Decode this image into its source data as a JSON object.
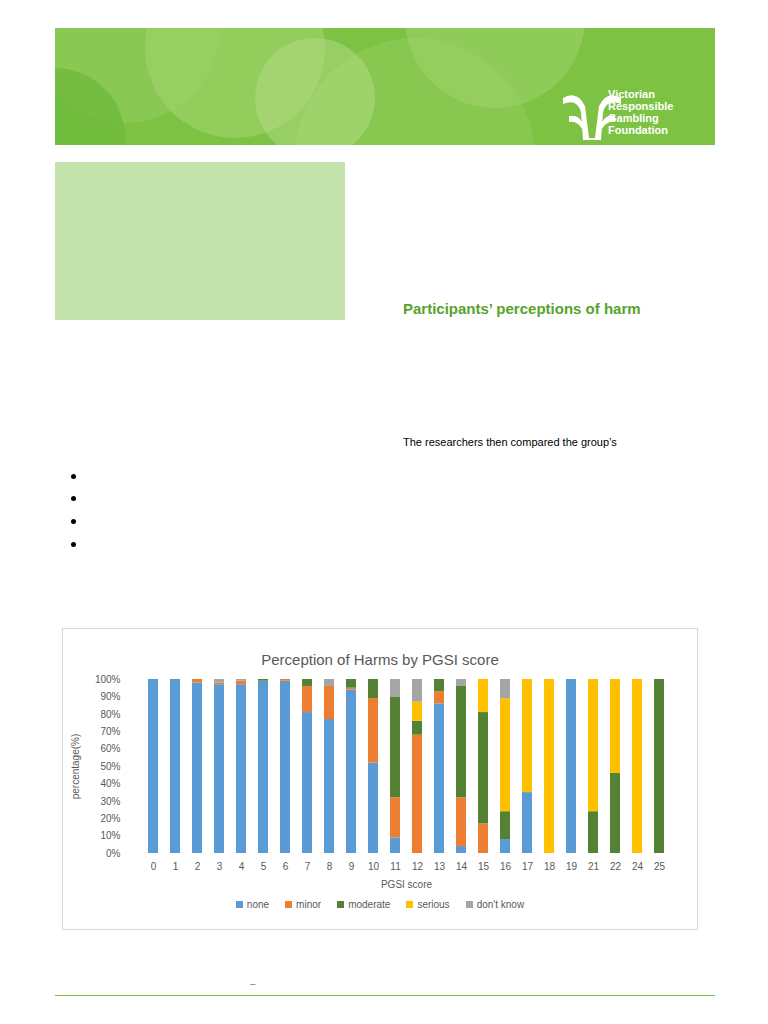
{
  "page": {
    "logo_lines": [
      "Victorian",
      "Responsible",
      "Gambling",
      "Foundation"
    ],
    "heading": "Participants’ perceptions of harm",
    "text": "The researchers then compared the group’s",
    "footer_text": "–"
  },
  "chart_data": {
    "type": "bar",
    "stacked": true,
    "title": "Perception of Harms by PGSI score",
    "x_label": "PGSI score",
    "y_label": "percentage(%)",
    "categories": [
      "0",
      "1",
      "2",
      "3",
      "4",
      "5",
      "6",
      "7",
      "8",
      "9",
      "10",
      "11",
      "12",
      "13",
      "14",
      "15",
      "16",
      "17",
      "18",
      "19",
      "21",
      "22",
      "24",
      "25"
    ],
    "series": [
      {
        "name": "none",
        "color": "#5b9bd5",
        "values": [
          100,
          100,
          98,
          97,
          97,
          99,
          99,
          81,
          77,
          94,
          52,
          9,
          0,
          86,
          4,
          0,
          8,
          35,
          0,
          100,
          0,
          0,
          0,
          0
        ]
      },
      {
        "name": "minor",
        "color": "#ed7d31",
        "values": [
          0,
          0,
          2,
          1,
          2,
          0,
          1,
          15,
          19,
          1,
          37,
          23,
          68,
          7,
          28,
          17,
          0,
          0,
          0,
          0,
          0,
          0,
          0,
          0
        ]
      },
      {
        "name": "moderate",
        "color": "#548235",
        "values": [
          0,
          0,
          0,
          0,
          0,
          1,
          0,
          4,
          0,
          5,
          11,
          58,
          8,
          7,
          64,
          64,
          16,
          0,
          0,
          0,
          24,
          46,
          0,
          100
        ]
      },
      {
        "name": "serious",
        "color": "#ffc000",
        "values": [
          0,
          0,
          0,
          0,
          0,
          0,
          0,
          0,
          0,
          0,
          0,
          0,
          11,
          0,
          0,
          19,
          65,
          65,
          100,
          0,
          76,
          54,
          100,
          0
        ]
      },
      {
        "name": "don't know",
        "color": "#a5a5a5",
        "values": [
          0,
          0,
          0,
          2,
          1,
          0,
          0,
          0,
          4,
          0,
          0,
          10,
          13,
          0,
          4,
          0,
          11,
          0,
          0,
          0,
          0,
          0,
          0,
          0
        ]
      }
    ],
    "ylim": [
      0,
      100
    ],
    "yticks": [
      {
        "value": 0,
        "label": "0%"
      },
      {
        "value": 10,
        "label": "10%"
      },
      {
        "value": 20,
        "label": "20%"
      },
      {
        "value": 30,
        "label": "30%"
      },
      {
        "value": 40,
        "label": "40%"
      },
      {
        "value": 50,
        "label": "50%"
      },
      {
        "value": 60,
        "label": "60%"
      },
      {
        "value": 70,
        "label": "70%"
      },
      {
        "value": 80,
        "label": "80%"
      },
      {
        "value": 90,
        "label": "90%"
      },
      {
        "value": 100,
        "label": "100%"
      }
    ],
    "grid": false,
    "legend": "bottom"
  }
}
